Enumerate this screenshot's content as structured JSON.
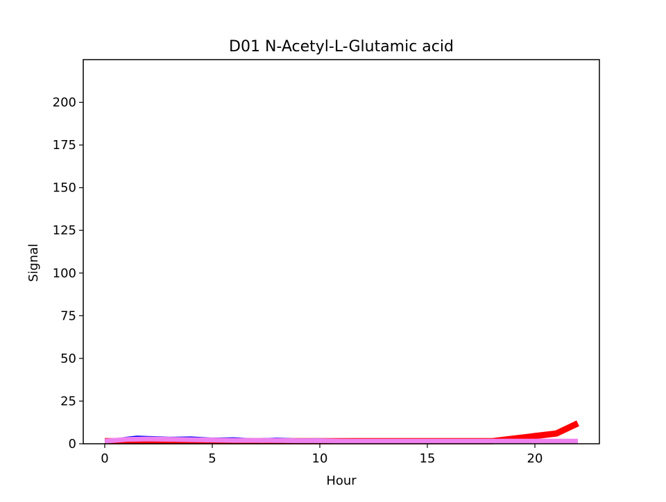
{
  "chart_data": {
    "type": "line",
    "title": "D01 N-Acetyl-L-Glutamic acid",
    "xlabel": "Hour",
    "ylabel": "Signal",
    "xlim": [
      -1.0,
      23.0
    ],
    "ylim": [
      0,
      225
    ],
    "xticks": [
      0,
      5,
      10,
      15,
      20
    ],
    "yticks": [
      0,
      25,
      50,
      75,
      100,
      125,
      150,
      175,
      200
    ],
    "grid": false,
    "series": [
      {
        "color": "#ff0000",
        "x": [
          0,
          1,
          2,
          3,
          4,
          5,
          6,
          7,
          8,
          9,
          10,
          11,
          12,
          13,
          14,
          15,
          16,
          17,
          18,
          19,
          20,
          21,
          22
        ],
        "values": [
          1.5,
          1.5,
          1.5,
          1.5,
          1.5,
          1.5,
          1.5,
          1.5,
          1.5,
          1.5,
          1.5,
          1.5,
          1.5,
          1.5,
          1.5,
          1.5,
          1.5,
          1.5,
          1.5,
          3.0,
          4.5,
          6.0,
          12.0
        ]
      },
      {
        "color": "#0000ff",
        "x": [
          0,
          1,
          1.5,
          2,
          3,
          4,
          5,
          6,
          7,
          8,
          9,
          10,
          11,
          12,
          13,
          14,
          15,
          16,
          17,
          18,
          19,
          20,
          21,
          22
        ],
        "values": [
          1.5,
          3.5,
          4.2,
          4.0,
          3.5,
          3.7,
          3.0,
          3.2,
          2.5,
          3.0,
          2.5,
          2.6,
          1.8,
          1.5,
          1.5,
          1.5,
          1.5,
          1.5,
          1.5,
          1.5,
          1.5,
          1.5,
          1.5,
          1.5
        ]
      },
      {
        "color": "#ee82ee",
        "x": [
          0,
          1,
          2,
          3,
          4,
          5,
          6,
          7,
          8,
          9,
          10,
          11,
          12,
          13,
          14,
          15,
          16,
          17,
          18,
          19,
          20,
          21,
          22
        ],
        "values": [
          1.5,
          2.5,
          2.8,
          2.6,
          2.4,
          2.2,
          2.0,
          2.0,
          1.9,
          1.8,
          1.8,
          1.6,
          1.5,
          1.5,
          1.5,
          1.5,
          1.5,
          1.5,
          1.5,
          1.5,
          1.5,
          1.5,
          1.5
        ]
      }
    ]
  }
}
